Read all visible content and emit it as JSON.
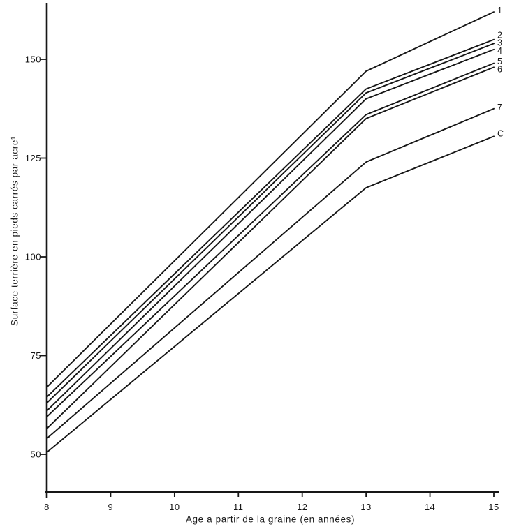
{
  "figure": {
    "background": "#ffffff",
    "ink_color": "#161616",
    "description": "Scanned black-and-white growth chart with eight curves labeled at right"
  },
  "chart_data": {
    "type": "line",
    "title": "",
    "xlabel": "Age a partir de la graine (en années)",
    "ylabel": "Surface terrière en pieds carrés par acre¹",
    "x": [
      8,
      13,
      15
    ],
    "x_ticks": [
      8,
      9,
      10,
      11,
      12,
      13,
      14,
      15
    ],
    "y_ticks": [
      50,
      75,
      100,
      125,
      150
    ],
    "xlim": [
      8,
      15
    ],
    "ylim": [
      40,
      165
    ],
    "grid": false,
    "legend_position": "labels at right end of each line",
    "line_color": "#161616",
    "series": [
      {
        "name": "1",
        "values": [
          67,
          147,
          162
        ],
        "label_value": 162.5
      },
      {
        "name": "2",
        "values": [
          64.5,
          142.5,
          155
        ],
        "label_value": 156.2
      },
      {
        "name": "3",
        "values": [
          63,
          141.5,
          154
        ],
        "label_value": 154.2
      },
      {
        "name": "4",
        "values": [
          61,
          140,
          152.5
        ],
        "label_value": 152.2
      },
      {
        "name": "5",
        "values": [
          59.5,
          136,
          149
        ],
        "label_value": 149.6
      },
      {
        "name": "6",
        "values": [
          56.5,
          135,
          148
        ],
        "label_value": 147.5
      },
      {
        "name": "7",
        "values": [
          54,
          124,
          137.5
        ],
        "label_value": 137.9
      },
      {
        "name": "C",
        "values": [
          50.5,
          117.5,
          130.5
        ],
        "label_value": 131.3
      }
    ]
  }
}
